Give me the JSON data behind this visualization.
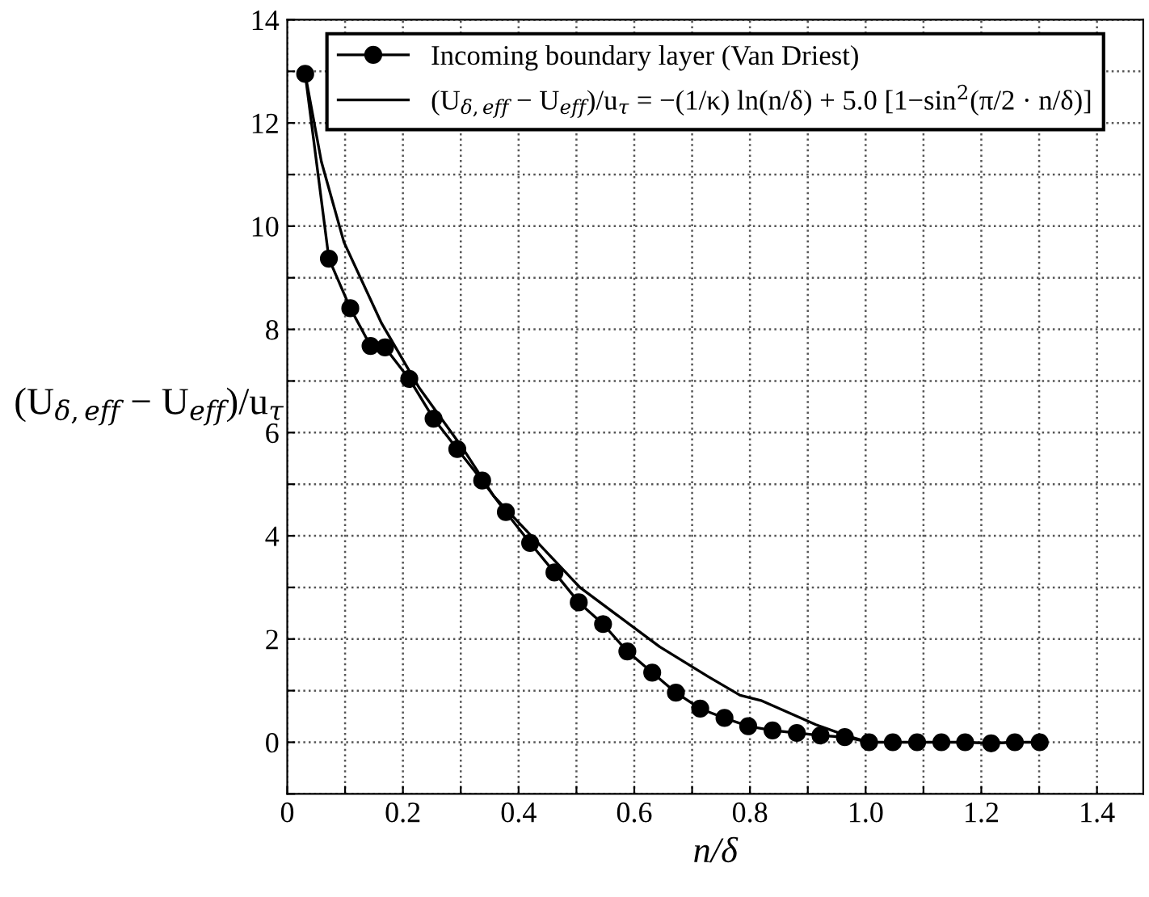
{
  "chart_data": {
    "type": "line",
    "xlabel": "n/δ",
    "ylabel": "(U$_{δ,eff}$ − U$_{eff}$)/u$_{τ}$",
    "xlim": [
      0,
      1.48
    ],
    "ylim": [
      -1,
      14
    ],
    "xticks": [
      0,
      {
        "value": 0.1,
        "label": null
      },
      0.2,
      {
        "value": 0.3,
        "label": null
      },
      0.4,
      {
        "value": 0.5,
        "label": null
      },
      0.6,
      {
        "value": 0.7,
        "label": null
      },
      0.8,
      {
        "value": 0.9,
        "label": null
      },
      {
        "value": 1.0,
        "label": "1.0"
      },
      {
        "value": 1.1,
        "label": null
      },
      1.2,
      {
        "value": 1.3,
        "label": null
      },
      1.4
    ],
    "yticks": [
      {
        "value": -1,
        "label": null
      },
      0,
      {
        "value": 1,
        "label": null
      },
      2,
      {
        "value": 3,
        "label": null
      },
      4,
      {
        "value": 5,
        "label": null
      },
      6,
      {
        "value": 7,
        "label": null
      },
      8,
      {
        "value": 9,
        "label": null
      },
      10,
      {
        "value": 11,
        "label": null
      },
      12,
      {
        "value": 13,
        "label": null
      },
      14
    ],
    "grid": true,
    "legend": "top",
    "line_style": "solid",
    "series": [
      {
        "name": "Incoming boundary layer (Van Driest)",
        "color": "#000000",
        "marker": "circle",
        "x": [
          0.031,
          0.072,
          0.109,
          0.144,
          0.169,
          0.211,
          0.253,
          0.294,
          0.337,
          0.378,
          0.42,
          0.462,
          0.504,
          0.546,
          0.588,
          0.631,
          0.672,
          0.714,
          0.756,
          0.797,
          0.839,
          0.881,
          0.922,
          0.964,
          1.006,
          1.047,
          1.089,
          1.131,
          1.172,
          1.217,
          1.258,
          1.301
        ],
        "values": [
          12.95,
          9.37,
          8.41,
          7.68,
          7.65,
          7.04,
          6.27,
          5.68,
          5.07,
          4.46,
          3.86,
          3.29,
          2.71,
          2.29,
          1.76,
          1.35,
          0.96,
          0.65,
          0.47,
          0.31,
          0.23,
          0.18,
          0.13,
          0.1,
          0.0,
          0.0,
          0.0,
          0.0,
          0.0,
          -0.02,
          0.0,
          0.0
        ]
      },
      {
        "name": "(U$_{δ,eff}$ − U$_{eff}$)/u$_{τ}$ = −(1/κ) ln(n/δ) + 5.0 [1−sin$^{2}$(π/2 · n/δ)]",
        "color": "#000000",
        "marker": "none",
        "x": [
          0.031,
          0.059,
          0.098,
          0.163,
          0.228,
          0.302,
          0.357,
          0.506,
          0.644,
          0.728,
          0.783,
          0.819,
          0.914,
          0.969,
          0.997
        ],
        "values": [
          12.95,
          11.25,
          9.69,
          8.12,
          6.87,
          5.72,
          4.77,
          3.0,
          1.85,
          1.27,
          0.91,
          0.81,
          0.34,
          0.12,
          0.03
        ]
      }
    ]
  }
}
